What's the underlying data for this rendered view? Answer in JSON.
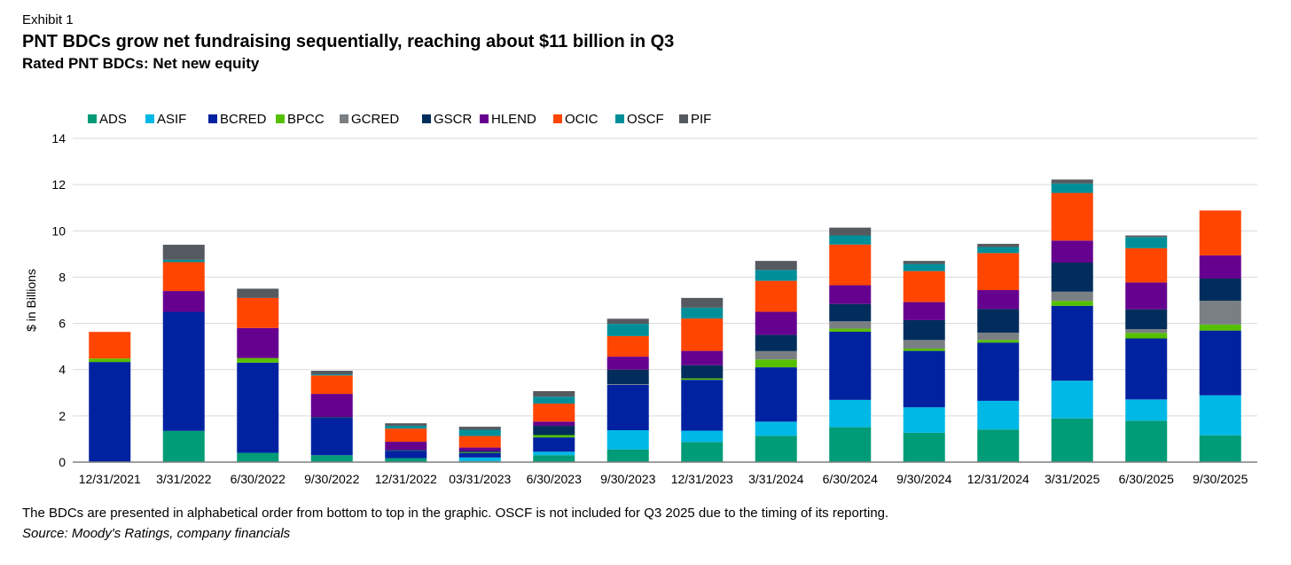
{
  "header": {
    "exhibit": "Exhibit 1",
    "title": "PNT BDCs grow net fundraising sequentially, reaching about $11 billion in Q3",
    "subtitle": "Rated PNT BDCs: Net new equity"
  },
  "footer": {
    "note": "The BDCs are presented in alphabetical order from bottom to top in the graphic. OSCF is not included for Q3 2025 due to the timing of its reporting.",
    "source": "Source: Moody's Ratings, company financials"
  },
  "chart_data": {
    "type": "bar",
    "stacked": true,
    "title": "Rated PNT BDCs: Net new equity",
    "xlabel": "",
    "ylabel": "$ in Billions",
    "ylim": [
      0,
      14
    ],
    "yticks": [
      0,
      2,
      4,
      6,
      8,
      10,
      12,
      14
    ],
    "grid": true,
    "legend_position": "top-left",
    "categories": [
      "12/31/2021",
      "3/31/2022",
      "6/30/2022",
      "9/30/2022",
      "12/31/2022",
      "03/31/2023",
      "6/30/2023",
      "9/30/2023",
      "12/31/2023",
      "3/31/2024",
      "6/30/2024",
      "9/30/2024",
      "12/31/2024",
      "3/31/2025",
      "6/30/2025",
      "9/30/2025"
    ],
    "series": [
      {
        "name": "ADS",
        "color": "#009B77",
        "values": [
          0,
          1.35,
          0.4,
          0.3,
          0.17,
          0.05,
          0.3,
          0.55,
          0.87,
          1.14,
          1.51,
          1.27,
          1.41,
          1.89,
          1.79,
          1.16
        ]
      },
      {
        "name": "ASIF",
        "color": "#00B8E6",
        "values": [
          0,
          0,
          0,
          0,
          0,
          0.15,
          0.15,
          0.83,
          0.49,
          0.61,
          1.18,
          1.1,
          1.24,
          1.63,
          0.92,
          1.73
        ]
      },
      {
        "name": "BCRED",
        "color": "#0022A0",
        "values": [
          4.33,
          5.15,
          3.9,
          1.6,
          0.32,
          0.2,
          0.62,
          1.96,
          2.2,
          2.35,
          2.95,
          2.44,
          2.52,
          3.24,
          2.64,
          2.8
        ]
      },
      {
        "name": "BPCC",
        "color": "#55C000",
        "values": [
          0.15,
          0,
          0.2,
          0,
          0,
          0.03,
          0.1,
          0,
          0.06,
          0.34,
          0.13,
          0.1,
          0.11,
          0.21,
          0.24,
          0.26
        ]
      },
      {
        "name": "GCRED",
        "color": "#7A7F83",
        "values": [
          0,
          0,
          0,
          0,
          0,
          0,
          0,
          0.03,
          0,
          0.36,
          0.32,
          0.37,
          0.32,
          0.4,
          0.16,
          1.03
        ]
      },
      {
        "name": "GSCR",
        "color": "#002D5C",
        "values": [
          0,
          0,
          0,
          0.05,
          0.04,
          0.05,
          0.4,
          0.63,
          0.57,
          0.7,
          0.75,
          0.86,
          1.02,
          1.26,
          0.86,
          0.96
        ]
      },
      {
        "name": "HLEND",
        "color": "#66008F",
        "values": [
          0,
          0.9,
          1.3,
          1.0,
          0.35,
          0.15,
          0.18,
          0.56,
          0.62,
          1.0,
          0.81,
          0.78,
          0.82,
          0.95,
          1.16,
          1.0
        ]
      },
      {
        "name": "OCIC",
        "color": "#FF4500",
        "values": [
          1.15,
          1.25,
          1.3,
          0.8,
          0.57,
          0.5,
          0.78,
          0.89,
          1.4,
          1.34,
          1.76,
          1.34,
          1.6,
          2.06,
          1.48,
          1.94
        ]
      },
      {
        "name": "OSCF",
        "color": "#008F99",
        "values": [
          0,
          0.1,
          0,
          0.05,
          0.12,
          0.27,
          0.3,
          0.53,
          0.47,
          0.47,
          0.39,
          0.31,
          0.26,
          0.41,
          0.48,
          0
        ]
      },
      {
        "name": "PIF",
        "color": "#555960",
        "values": [
          0,
          0.65,
          0.4,
          0.15,
          0.11,
          0.13,
          0.24,
          0.22,
          0.42,
          0.39,
          0.34,
          0.13,
          0.14,
          0.17,
          0.07,
          0
        ]
      }
    ]
  }
}
